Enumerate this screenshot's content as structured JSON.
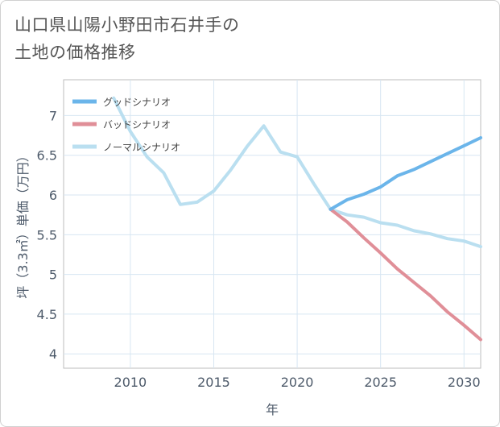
{
  "header": {
    "title_line1": "山口県山陽小野田市石井手の",
    "title_line2": "土地の価格推移"
  },
  "chart_data": {
    "type": "line",
    "title": "山口県山陽小野田市石井手の土地の価格推移",
    "xlabel": "年",
    "ylabel": "坪（3.3㎡）単価（万円）",
    "xlim": [
      2006,
      2031
    ],
    "ylim": [
      3.82,
      7.45
    ],
    "xticks": [
      2010,
      2015,
      2020,
      2025,
      2030
    ],
    "yticks": [
      4,
      4.5,
      5,
      5.5,
      6,
      6.5,
      7
    ],
    "ytick_labels": [
      "4",
      "4.5",
      "5",
      "5.5",
      "6",
      "6.5",
      "7"
    ],
    "grid": true,
    "legend_position": "top-left",
    "series": [
      {
        "name": "グッドシナリオ",
        "color": "#6bb5ea",
        "x": [
          2022,
          2023,
          2024,
          2025,
          2026,
          2027,
          2028,
          2029,
          2030,
          2031
        ],
        "y": [
          5.82,
          5.94,
          6.01,
          6.1,
          6.24,
          6.32,
          6.42,
          6.52,
          6.62,
          6.72
        ]
      },
      {
        "name": "バッドシナリオ",
        "color": "#e08f98",
        "x": [
          2022,
          2023,
          2024,
          2025,
          2026,
          2027,
          2028,
          2029,
          2030,
          2031
        ],
        "y": [
          5.82,
          5.66,
          5.46,
          5.27,
          5.07,
          4.9,
          4.73,
          4.53,
          4.36,
          4.18
        ]
      },
      {
        "name": "ノーマルシナリオ",
        "color": "#badff0",
        "x": [
          2009,
          2010,
          2011,
          2012,
          2013,
          2014,
          2015,
          2016,
          2017,
          2018,
          2019,
          2020,
          2021,
          2022,
          2023,
          2024,
          2025,
          2026,
          2027,
          2028,
          2029,
          2030,
          2031
        ],
        "y": [
          7.22,
          6.8,
          6.48,
          6.28,
          5.88,
          5.91,
          6.05,
          6.31,
          6.61,
          6.87,
          6.54,
          6.48,
          6.14,
          5.82,
          5.75,
          5.72,
          5.65,
          5.62,
          5.55,
          5.51,
          5.45,
          5.42,
          5.35
        ]
      }
    ]
  }
}
